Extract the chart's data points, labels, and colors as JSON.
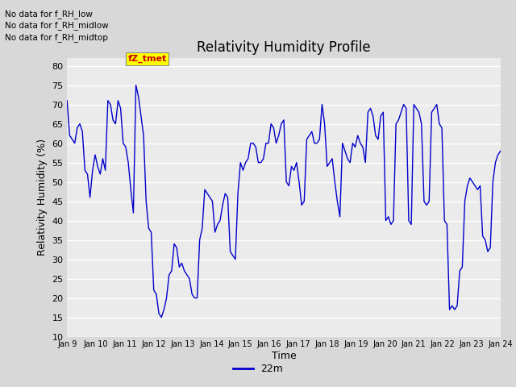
{
  "title": "Relativity Humidity Profile",
  "ylabel": "Relativity Humidity (%)",
  "xlabel": "Time",
  "legend_label": "22m",
  "ylim": [
    10,
    82
  ],
  "yticks": [
    10,
    15,
    20,
    25,
    30,
    35,
    40,
    45,
    50,
    55,
    60,
    65,
    70,
    75,
    80
  ],
  "xtick_labels": [
    "Jan 9",
    "Jan 10",
    "Jan 11",
    "Jan 12",
    "Jan 13",
    "Jan 14",
    "Jan 15",
    "Jan 16",
    "Jan 17",
    "Jan 18",
    "Jan 19",
    "Jan 20",
    "Jan 21",
    "Jan 22",
    "Jan 23",
    "Jan 24"
  ],
  "line_color": "#0000cc",
  "bg_color": "#d8d8d8",
  "plot_bg_color": "#ebebeb",
  "annotations": [
    "No data for f_RH_low",
    "No data for f_RH_midlow",
    "No data for f_RH_midtop"
  ],
  "legend_box_color": "#ffff00",
  "legend_text_color": "#cc0000",
  "humidity_values": [
    71,
    62,
    61,
    60,
    64,
    65,
    63,
    53,
    52,
    46,
    53,
    57,
    54,
    52,
    56,
    53,
    71,
    70,
    66,
    65,
    71,
    69,
    60,
    59,
    55,
    48,
    42,
    75,
    72,
    67,
    62,
    45,
    38,
    37,
    22,
    21,
    16,
    15,
    17,
    20,
    26,
    27,
    34,
    33,
    28,
    29,
    27,
    26,
    25,
    21,
    20,
    20,
    35,
    38,
    48,
    47,
    46,
    45,
    37,
    39,
    40,
    44,
    47,
    46,
    32,
    31,
    30,
    47,
    55,
    53,
    55,
    56,
    60,
    60,
    59,
    55,
    55,
    56,
    60,
    60,
    65,
    64,
    60,
    62,
    65,
    66,
    50,
    49,
    54,
    53,
    55,
    50,
    44,
    45,
    61,
    62,
    63,
    60,
    60,
    61,
    70,
    65,
    54,
    55,
    56,
    50,
    45,
    41,
    60,
    58,
    56,
    55,
    60,
    59,
    62,
    60,
    59,
    55,
    68,
    69,
    67,
    62,
    61,
    67,
    68,
    40,
    41,
    39,
    40,
    65,
    66,
    68,
    70,
    69,
    40,
    39,
    70,
    69,
    68,
    65,
    45,
    44,
    45,
    68,
    69,
    70,
    65,
    64,
    40,
    39,
    17,
    18,
    17,
    18,
    27,
    28,
    45,
    49,
    51,
    50,
    49,
    48,
    49,
    36,
    35,
    32,
    33,
    50,
    55,
    57,
    58
  ]
}
